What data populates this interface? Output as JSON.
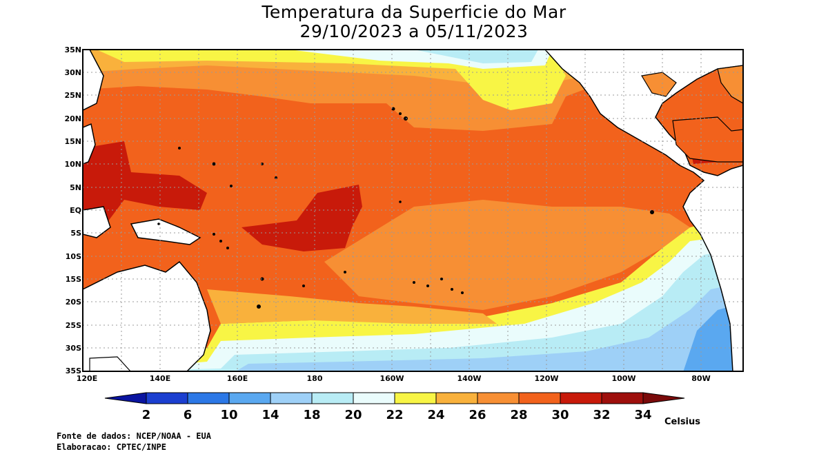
{
  "title_line1": "Temperatura da Superficie do Mar",
  "title_line2": "29/10/2023 a 05/11/2023",
  "lat_labels": [
    "35N",
    "30N",
    "25N",
    "20N",
    "15N",
    "10N",
    "5N",
    "EQ",
    "5S",
    "10S",
    "15S",
    "20S",
    "25S",
    "30S",
    "35S"
  ],
  "lon_labels": [
    "120E",
    "140E",
    "160E",
    "180",
    "160W",
    "140W",
    "120W",
    "100W",
    "80W"
  ],
  "colorbar": {
    "ticks": [
      "2",
      "6",
      "10",
      "14",
      "18",
      "20",
      "22",
      "24",
      "26",
      "28",
      "30",
      "32",
      "34"
    ],
    "unit": "Celsius",
    "colors": [
      "#0a14a0",
      "#1b3fd0",
      "#2c78e6",
      "#5aa8f0",
      "#9ed0f7",
      "#b8ecf5",
      "#eafcfc",
      "#f8f545",
      "#f9b13c",
      "#f78f34",
      "#f2621c",
      "#c81a0a",
      "#9e0f0c",
      "#7a0a0a"
    ]
  },
  "credits": {
    "source": "Fonte de dados: NCEP/NOAA - EUA",
    "made_by": "Elaboracao: CPTEC/INPE"
  }
}
